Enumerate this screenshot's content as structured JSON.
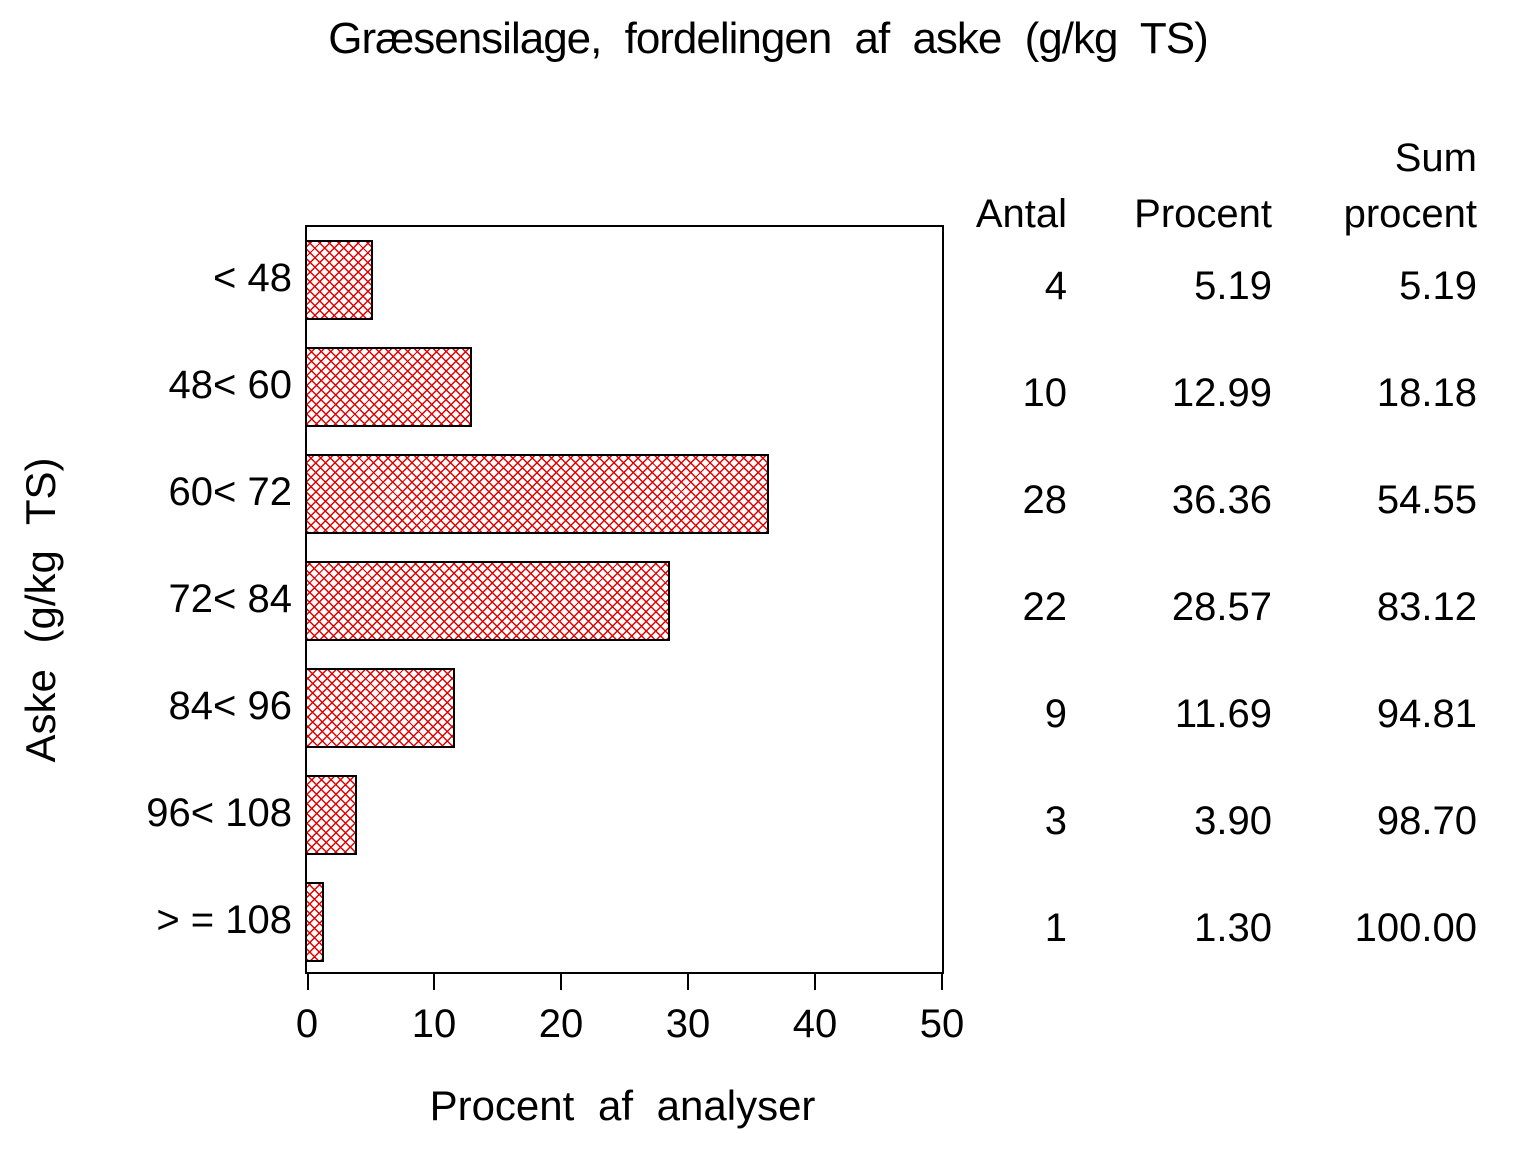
{
  "title": "Græsensilage, fordelingen af aske (g/kg TS)",
  "colors": {
    "hatch_red": "#e60000",
    "bar_border": "#000000",
    "axis": "#000000",
    "background": "#ffffff",
    "text": "#000000"
  },
  "chart_data": {
    "type": "bar",
    "orientation": "horizontal",
    "title": "Græsensilage, fordelingen af aske (g/kg TS)",
    "ylabel": "Aske (g/kg TS)",
    "xlabel": "Procent af analyser",
    "xlim": [
      0,
      50
    ],
    "xticks": [
      "0",
      "10",
      "20",
      "30",
      "40",
      "50"
    ],
    "grid": false,
    "bar_style": "red crosshatch fill, black outline",
    "categories": [
      "< 48",
      "48< 60",
      "60< 72",
      "72< 84",
      "84< 96",
      "96< 108",
      "> = 108"
    ],
    "series": [
      {
        "name": "Procent af analyser",
        "values": [
          5.19,
          12.99,
          36.36,
          28.57,
          11.69,
          3.9,
          1.3
        ]
      }
    ],
    "table": {
      "col_headers": {
        "antal": "Antal",
        "procent": "Procent",
        "sum_line1": "Sum",
        "sum_line2": "procent"
      },
      "rows": [
        {
          "antal": "4",
          "procent": "5.19",
          "sum": "5.19"
        },
        {
          "antal": "10",
          "procent": "12.99",
          "sum": "18.18"
        },
        {
          "antal": "28",
          "procent": "36.36",
          "sum": "54.55"
        },
        {
          "antal": "22",
          "procent": "28.57",
          "sum": "83.12"
        },
        {
          "antal": "9",
          "procent": "11.69",
          "sum": "94.81"
        },
        {
          "antal": "3",
          "procent": "3.90",
          "sum": "98.70"
        },
        {
          "antal": "1",
          "procent": "1.30",
          "sum": "100.00"
        }
      ]
    }
  }
}
